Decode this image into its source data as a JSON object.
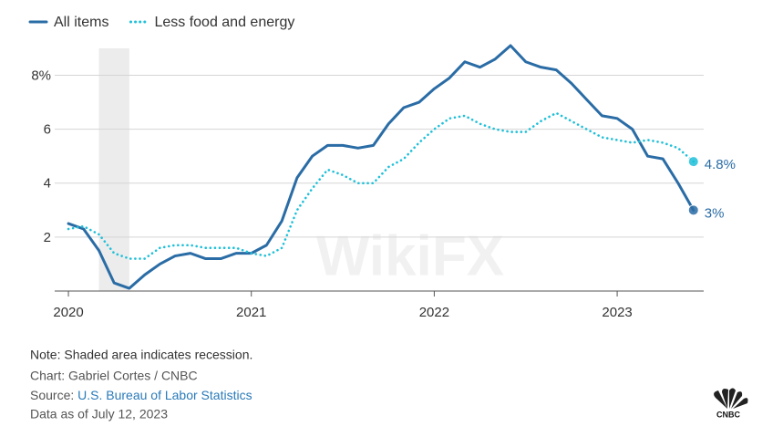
{
  "chart_data": {
    "type": "line",
    "x": [
      2020,
      2020.083,
      2020.167,
      2020.25,
      2020.333,
      2020.417,
      2020.5,
      2020.583,
      2020.667,
      2020.75,
      2020.833,
      2020.917,
      2021,
      2021.083,
      2021.167,
      2021.25,
      2021.333,
      2021.417,
      2021.5,
      2021.583,
      2021.667,
      2021.75,
      2021.833,
      2021.917,
      2022,
      2022.083,
      2022.167,
      2022.25,
      2022.333,
      2022.417,
      2022.5,
      2022.583,
      2022.667,
      2022.75,
      2022.833,
      2022.917,
      2023,
      2023.083,
      2023.167,
      2023.25,
      2023.333,
      2023.417
    ],
    "series": [
      {
        "name": "All items",
        "color": "#2a6ca5",
        "dash": false,
        "end_label": "3%",
        "values": [
          2.5,
          2.3,
          1.5,
          0.3,
          0.1,
          0.6,
          1.0,
          1.3,
          1.4,
          1.2,
          1.2,
          1.4,
          1.4,
          1.7,
          2.6,
          4.2,
          5.0,
          5.4,
          5.4,
          5.3,
          5.4,
          6.2,
          6.8,
          7.0,
          7.5,
          7.9,
          8.5,
          8.3,
          8.6,
          9.1,
          8.5,
          8.3,
          8.2,
          7.7,
          7.1,
          6.5,
          6.4,
          6.0,
          5.0,
          4.9,
          4.0,
          3.0
        ]
      },
      {
        "name": "Less food and energy",
        "color": "#1fc0d9",
        "dash": true,
        "end_label": "4.8%",
        "values": [
          2.3,
          2.4,
          2.1,
          1.4,
          1.2,
          1.2,
          1.6,
          1.7,
          1.7,
          1.6,
          1.6,
          1.6,
          1.4,
          1.3,
          1.6,
          3.0,
          3.8,
          4.5,
          4.3,
          4.0,
          4.0,
          4.6,
          4.9,
          5.5,
          6.0,
          6.4,
          6.5,
          6.2,
          6.0,
          5.9,
          5.9,
          6.3,
          6.6,
          6.3,
          6.0,
          5.7,
          5.6,
          5.5,
          5.6,
          5.5,
          5.3,
          4.8
        ]
      }
    ],
    "recession": [
      2020.167,
      2020.333
    ],
    "xlim": [
      2019.925,
      2023.473
    ],
    "xticks": [
      2020,
      2021,
      2022,
      2023
    ],
    "ylim": [
      0,
      9.1
    ],
    "yticks": [
      2,
      4,
      6,
      {
        "value": 8,
        "label": "8%"
      }
    ],
    "grid": true,
    "note": "Note: Shaded area indicates recession.",
    "credit": "Chart: Gabriel Cortes / CNBC",
    "source_label": "Source:",
    "source_link": "U.S. Bureau of Labor Statistics",
    "data_date": "Data as of July 12, 2023",
    "watermark": "WikiFX",
    "logo": "CNBC"
  }
}
